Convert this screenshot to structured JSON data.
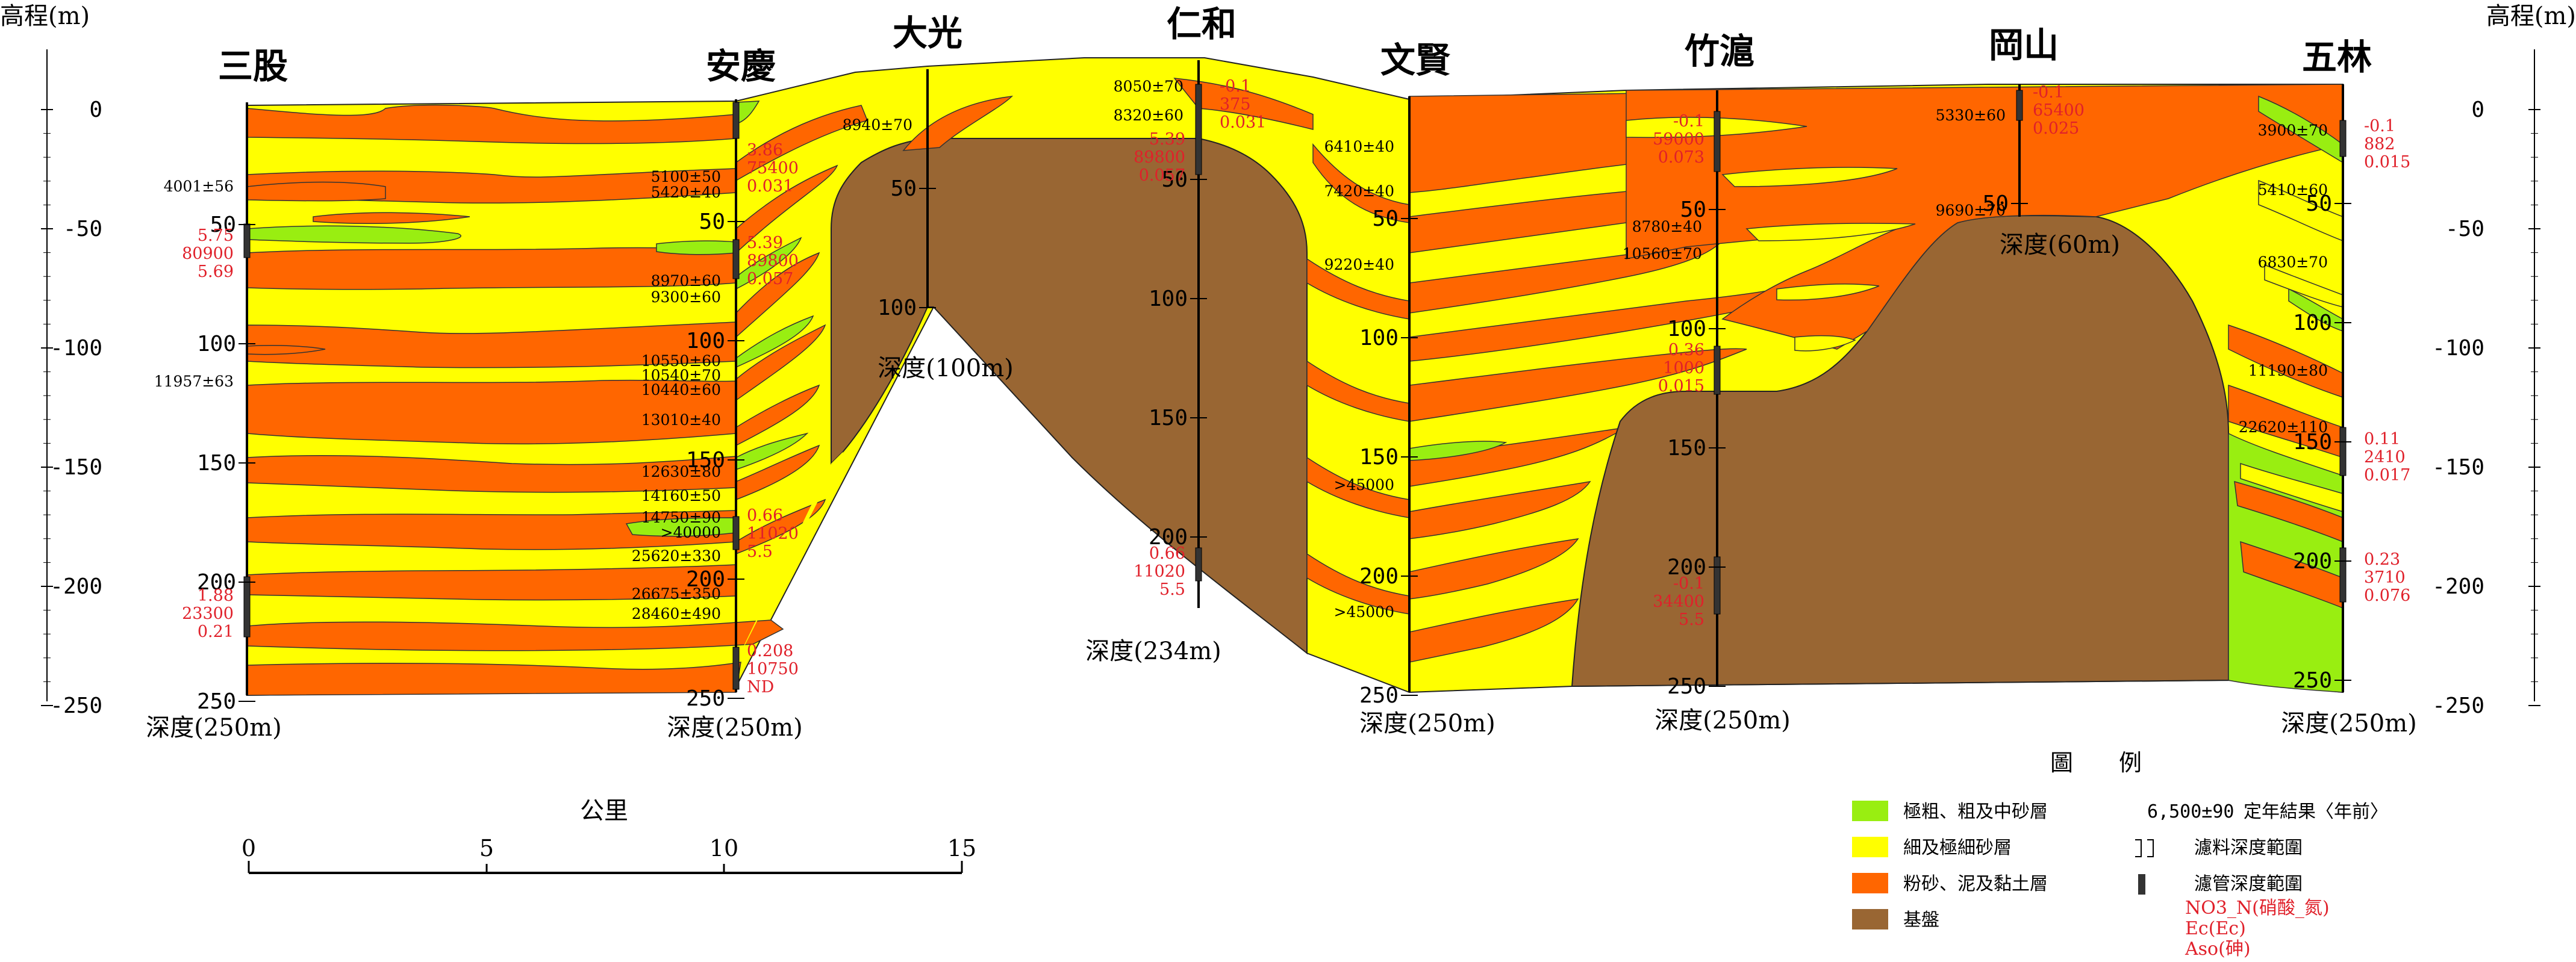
{
  "axes": {
    "elev_label": "高程(m)",
    "elev_ticks": [
      {
        "v": 0,
        "t": "0"
      },
      {
        "v": -50,
        "t": "-50"
      },
      {
        "v": -100,
        "t": "-100"
      },
      {
        "v": -150,
        "t": "-150"
      },
      {
        "v": -200,
        "t": "-200"
      },
      {
        "v": -250,
        "t": "-250"
      }
    ]
  },
  "stations": [
    {
      "name": "三股",
      "depth_label": "深度(250m)",
      "depth_ticks": [
        "50",
        "100",
        "150",
        "200",
        "250"
      ]
    },
    {
      "name": "安慶",
      "depth_label": "深度(250m)",
      "depth_ticks": [
        "50",
        "100",
        "150",
        "200",
        "250"
      ]
    },
    {
      "name": "大光",
      "depth_label": "深度(100m)",
      "depth_ticks": [
        "50",
        "100"
      ]
    },
    {
      "name": "仁和",
      "depth_label": "深度(234m)",
      "depth_ticks": [
        "50",
        "100",
        "150",
        "200"
      ]
    },
    {
      "name": "文賢",
      "depth_label": "深度(250m)",
      "depth_ticks": [
        "50",
        "100",
        "150",
        "200",
        "250"
      ]
    },
    {
      "name": "竹滬",
      "depth_label": "深度(250m)",
      "depth_ticks": [
        "50",
        "100",
        "150",
        "200",
        "250"
      ]
    },
    {
      "name": "岡山",
      "depth_label": "深度(60m)",
      "depth_ticks": [
        "50"
      ]
    },
    {
      "name": "五林",
      "depth_label": "深度(250m)",
      "depth_ticks": [
        "50",
        "100",
        "150",
        "200",
        "250"
      ]
    }
  ],
  "dates": {
    "sangu": [
      "4001±56",
      "11957±63"
    ],
    "anqing": [
      "5100±50",
      "5420±40",
      "8970±60",
      "9300±60",
      "10550±60",
      "10540±70",
      "10440±60",
      "13010±40",
      "12630±80",
      "14160±50",
      "14750±90",
      ">40000",
      "25620±330",
      "26675±350",
      "28460±490"
    ],
    "daguang": [
      "8940±70"
    ],
    "renhe": [
      "8050±70",
      "8320±60"
    ],
    "wenxian": [
      "6410±40",
      "7420±40",
      "9220±40",
      ">45000",
      ">45000"
    ],
    "zhuhu": [
      "8780±40",
      "10560±70"
    ],
    "gangshan": [
      "5330±60",
      "9690±70"
    ],
    "wulin": [
      "3900±70",
      "5410±60",
      "6830±70",
      "11190±80",
      "22620±110"
    ]
  },
  "chem": {
    "sangu_1": [
      "5.75",
      "80900",
      "5.69"
    ],
    "sangu_2": [
      "1.88",
      "23300",
      "0.21"
    ],
    "anqing_1": [
      "3.86",
      "75400",
      "0.031"
    ],
    "anqing_2": [
      "5.39",
      "89800",
      "0.057"
    ],
    "anqing_3": [
      "0.66",
      "11020",
      "5.5"
    ],
    "anqing_4": [
      "0.208",
      "10750",
      "ND"
    ],
    "renhe_1": [
      "-0.1",
      "375",
      "0.031"
    ],
    "renhe_1b": [
      "5.39",
      "89800",
      "0.057"
    ],
    "renhe_2": [
      "0.66",
      "11020",
      "5.5"
    ],
    "zhuhu_1": [
      "-0.1",
      "59000",
      "0.073"
    ],
    "zhuhu_2": [
      "0.36",
      "1000",
      "0.015"
    ],
    "zhuhu_3": [
      "-0.1",
      "34400",
      "5.5"
    ],
    "gangshan_1": [
      "-0.1",
      "65400",
      "0.025"
    ],
    "wulin_1": [
      "-0.1",
      "882",
      "0.015"
    ],
    "wulin_2": [
      "0.11",
      "2410",
      "0.017"
    ],
    "wulin_3": [
      "0.23",
      "3710",
      "0.076"
    ]
  },
  "scale": {
    "title": "公里",
    "ticks": [
      "0",
      "5",
      "10",
      "15"
    ]
  },
  "legend": {
    "title": "圖　　例",
    "items": [
      {
        "label": "極粗、粗及中砂層",
        "color": "#99ee11"
      },
      {
        "label": "細及極細砂層",
        "color": "#ffff00"
      },
      {
        "label": "粉砂、泥及黏土層",
        "color": "#ff6600"
      },
      {
        "label": "基盤",
        "color": "#996633"
      }
    ],
    "symbols": [
      {
        "sample": "6,500±90",
        "label": "定年結果〈年前〉"
      },
      {
        "label": "濾料深度範圍"
      },
      {
        "label": "濾管深度範圍"
      }
    ],
    "chem_labels": [
      "NO3_N(硝酸_氮)",
      "Ec(Ec)",
      "Aso(砷)"
    ]
  },
  "colors": {
    "coarse": "#99ee11",
    "fine": "#ffff00",
    "silt": "#ff6600",
    "basement": "#996633",
    "red_text": "#e0202a"
  }
}
